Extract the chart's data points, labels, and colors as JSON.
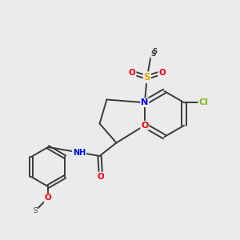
{
  "background_color": "#ebebeb",
  "bond_color": "#3a3a3a",
  "atom_colors": {
    "N": "#0000ee",
    "O": "#ee0000",
    "S": "#ddaa00",
    "Cl": "#77bb00",
    "C": "#3a3a3a"
  },
  "figsize": [
    3.0,
    3.0
  ],
  "dpi": 100
}
